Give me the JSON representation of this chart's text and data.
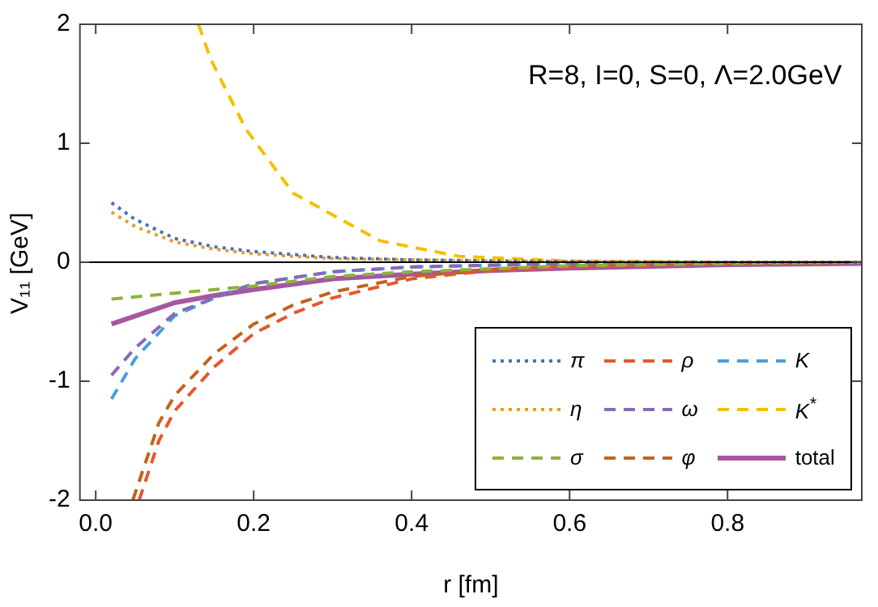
{
  "chart_data": {
    "type": "line",
    "xlabel": "r [fm]",
    "ylabel": "V₁₁ [GeV]",
    "xlim": [
      -0.02,
      0.97
    ],
    "ylim": [
      -2,
      2
    ],
    "xticks": [
      {
        "value": 0,
        "label": "0.0"
      },
      {
        "value": 0.2,
        "label": "0.2"
      },
      {
        "value": 0.4,
        "label": "0.4"
      },
      {
        "value": 0.6,
        "label": "0.6"
      },
      {
        "value": 0.8,
        "label": "0.8"
      }
    ],
    "yticks": [
      -2,
      -1,
      0,
      1,
      2
    ],
    "grid": false,
    "legend": "bottom right",
    "marker": "none",
    "annotations": [
      "R=8, I=0, S=0, Λ=2.0GeV"
    ],
    "ref_lines": [
      {
        "axis": "y",
        "value": 0,
        "color": "#000000"
      }
    ],
    "series": [
      {
        "name": "π",
        "color": "#4a72b0",
        "line_style": "dotted",
        "x": [
          0.02,
          0.05,
          0.1,
          0.15,
          0.2,
          0.3,
          0.4,
          0.6,
          0.8,
          0.97
        ],
        "values": [
          0.5,
          0.36,
          0.2,
          0.13,
          0.09,
          0.04,
          0.02,
          0.005,
          0,
          0
        ]
      },
      {
        "name": "η",
        "color": "#e69f2a",
        "line_style": "dotted",
        "x": [
          0.02,
          0.05,
          0.1,
          0.15,
          0.2,
          0.3,
          0.5,
          0.8,
          0.97
        ],
        "values": [
          0.42,
          0.3,
          0.17,
          0.11,
          0.07,
          0.03,
          0.01,
          0,
          0
        ]
      },
      {
        "name": "σ",
        "color": "#8cb33a",
        "line_style": "dashed",
        "x": [
          0.02,
          0.1,
          0.2,
          0.3,
          0.4,
          0.6,
          0.8,
          0.97
        ],
        "values": [
          -0.31,
          -0.26,
          -0.2,
          -0.12,
          -0.08,
          -0.03,
          -0.01,
          0
        ]
      },
      {
        "name": "ρ",
        "color": "#e8562d",
        "line_style": "dashed",
        "x": [
          0.055,
          0.08,
          0.1,
          0.15,
          0.2,
          0.25,
          0.3,
          0.4,
          0.5,
          0.6,
          0.8,
          0.97
        ],
        "values": [
          -2,
          -1.5,
          -1.25,
          -0.88,
          -0.6,
          -0.43,
          -0.3,
          -0.14,
          -0.07,
          -0.04,
          -0.01,
          0
        ]
      },
      {
        "name": "ω",
        "color": "#8869b8",
        "line_style": "dashed",
        "x": [
          0.02,
          0.05,
          0.1,
          0.15,
          0.2,
          0.3,
          0.4,
          0.6,
          0.8,
          0.97
        ],
        "values": [
          -0.95,
          -0.72,
          -0.43,
          -0.3,
          -0.18,
          -0.08,
          -0.04,
          -0.01,
          0,
          0
        ]
      },
      {
        "name": "φ",
        "color": "#c2631b",
        "line_style": "dashed",
        "x": [
          0.047,
          0.08,
          0.1,
          0.15,
          0.2,
          0.25,
          0.3,
          0.4,
          0.5,
          0.6,
          0.8,
          0.97
        ],
        "values": [
          -2,
          -1.35,
          -1.12,
          -0.77,
          -0.52,
          -0.36,
          -0.25,
          -0.12,
          -0.06,
          -0.03,
          -0.01,
          0
        ]
      },
      {
        "name": "K",
        "color": "#4a9fd6",
        "line_style": "dashed",
        "x": [
          0.02,
          0.05,
          0.1,
          0.15,
          0.2,
          0.3,
          0.4,
          0.6,
          0.8,
          0.97
        ],
        "values": [
          -1.15,
          -0.81,
          -0.45,
          -0.3,
          -0.18,
          -0.08,
          -0.04,
          -0.01,
          0,
          0
        ]
      },
      {
        "name": "K$^{*}$",
        "color": "#f5c000",
        "line_style": "dashed",
        "x": [
          0.13,
          0.146,
          0.19,
          0.25,
          0.36,
          0.46,
          0.6,
          0.8,
          0.97
        ],
        "values": [
          2,
          1.7,
          1.12,
          0.58,
          0.18,
          0.05,
          0.01,
          0,
          0
        ]
      },
      {
        "name": "total",
        "color": "#a557a0",
        "line_style": "solid",
        "x": [
          0.02,
          0.1,
          0.15,
          0.2,
          0.3,
          0.4,
          0.5,
          0.6,
          0.8,
          0.97
        ],
        "values": [
          -0.52,
          -0.34,
          -0.28,
          -0.23,
          -0.14,
          -0.1,
          -0.07,
          -0.05,
          -0.02,
          -0.01
        ]
      }
    ]
  }
}
